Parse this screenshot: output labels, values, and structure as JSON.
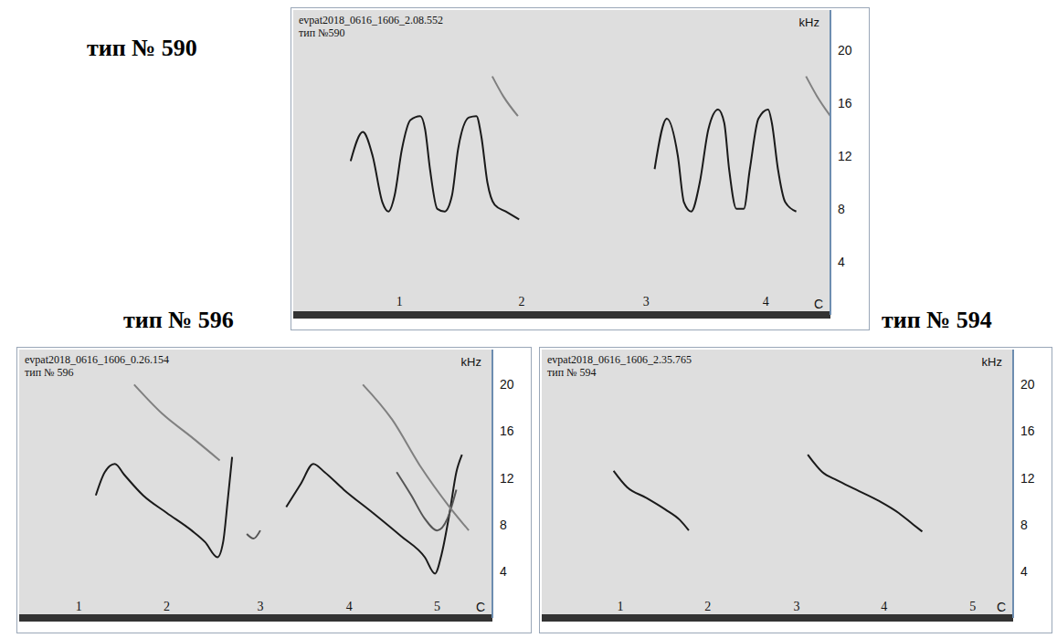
{
  "chart_data": [
    {
      "type": "line",
      "title": "тип № 590",
      "subtitle": "evpat2018_0616_1606_2.08.552",
      "y_label": "kHz",
      "x_label": "C",
      "xlim": [
        0,
        4.4
      ],
      "ylim": [
        0,
        23
      ],
      "yticks": [
        4,
        8,
        12,
        16,
        20
      ],
      "tick_labels": "y",
      "grid": false,
      "annotations": [
        {
          "text": "тип №590"
        },
        {
          "text": "1",
          "x": 0.87,
          "y": 1
        },
        {
          "text": "2",
          "x": 1.87,
          "y": 1
        },
        {
          "text": "3",
          "x": 2.89,
          "y": 1
        },
        {
          "text": "4",
          "x": 3.87,
          "y": 1
        }
      ],
      "series": [
        {
          "color": "#1a1a1a",
          "x": [
            0.47,
            0.57,
            0.65,
            0.73,
            0.78,
            0.83,
            0.89,
            0.96,
            1.04,
            1.08,
            1.12,
            1.18,
            1.24,
            1.3,
            1.35,
            1.44,
            1.5,
            1.54,
            1.59,
            1.65,
            1.74,
            1.85
          ],
          "values": [
            11.6,
            13.8,
            12,
            8.5,
            7.8,
            9,
            12.5,
            14.7,
            15,
            14,
            11,
            8,
            7.8,
            9,
            12.5,
            14.9,
            15,
            13.5,
            10,
            8.3,
            7.8,
            7.2
          ]
        },
        {
          "color": "#1a1a1a",
          "x": [
            2.96,
            3.06,
            3.15,
            3.2,
            3.26,
            3.33,
            3.4,
            3.48,
            3.53,
            3.57,
            3.63,
            3.69,
            3.74,
            3.81,
            3.89,
            3.92,
            3.97,
            4.03,
            4.12
          ],
          "values": [
            11,
            14.8,
            12,
            8.5,
            7.8,
            10,
            14,
            15.5,
            14.5,
            11,
            8,
            8,
            11,
            14.8,
            15.5,
            14.5,
            11,
            8.5,
            7.8
          ]
        },
        {
          "color": "#808080",
          "x": [
            1.63,
            1.72,
            1.84
          ],
          "values": [
            18,
            16.5,
            15
          ]
        },
        {
          "color": "#808080",
          "x": [
            4.2,
            4.29,
            4.4
          ],
          "values": [
            18,
            16.5,
            15
          ]
        }
      ]
    },
    {
      "type": "line",
      "title": "тип № 596",
      "subtitle": "evpat2018_0616_1606_0.26.154",
      "y_label": "kHz",
      "x_label": "C",
      "xlim": [
        0,
        4.2
      ],
      "ylim": [
        0,
        23
      ],
      "yticks": [
        4,
        8,
        12,
        16,
        20
      ],
      "tick_labels": "y",
      "grid": false,
      "annotations": [
        {
          "text": "тип № 596"
        },
        {
          "text": "1",
          "x": 0.53,
          "y": 1
        },
        {
          "text": "2",
          "x": 1.31,
          "y": 1
        },
        {
          "text": "3",
          "x": 2.14,
          "y": 1
        },
        {
          "text": "4",
          "x": 2.93,
          "y": 1
        },
        {
          "text": "5",
          "x": 3.71,
          "y": 1
        }
      ],
      "series": [
        {
          "color": "#1a1a1a",
          "x": [
            0.68,
            0.76,
            0.85,
            0.93,
            1.1,
            1.31,
            1.53,
            1.65,
            1.76,
            1.81,
            1.85,
            1.89
          ],
          "values": [
            10.5,
            12.5,
            13.2,
            12.3,
            10.5,
            9,
            7.5,
            6.5,
            5.2,
            6.5,
            10,
            13.8
          ]
        },
        {
          "color": "#808080",
          "x": [
            1.02,
            1.27,
            1.53,
            1.78
          ],
          "values": [
            20,
            17.5,
            15.5,
            13.5
          ]
        },
        {
          "color": "#555555",
          "x": [
            2.02,
            2.08,
            2.14
          ],
          "values": [
            7.2,
            6.8,
            7.5
          ]
        },
        {
          "color": "#1a1a1a",
          "x": [
            2.37,
            2.5,
            2.61,
            2.71,
            2.88,
            3.14,
            3.39,
            3.6,
            3.69,
            3.75,
            3.82,
            3.88,
            3.93
          ],
          "values": [
            9.5,
            11.5,
            13.2,
            12.5,
            11,
            9,
            7,
            5.2,
            3.8,
            5.5,
            9,
            12.5,
            14
          ]
        },
        {
          "color": "#555555",
          "x": [
            3.35,
            3.48,
            3.6,
            3.71,
            3.8,
            3.88
          ],
          "values": [
            12.5,
            10.5,
            8.5,
            7.5,
            8.5,
            11
          ]
        },
        {
          "color": "#808080",
          "x": [
            3.05,
            3.31,
            3.56,
            3.82,
            3.99
          ],
          "values": [
            20,
            17,
            13,
            9.5,
            7.5
          ]
        }
      ]
    },
    {
      "type": "line",
      "title": "тип № 594",
      "subtitle": "evpat2018_0616_1606_2.35.765",
      "y_label": "kHz",
      "x_label": "C",
      "xlim": [
        0,
        4.2
      ],
      "ylim": [
        0,
        23
      ],
      "yticks": [
        4,
        8,
        12,
        16,
        20
      ],
      "tick_labels": "y",
      "grid": false,
      "annotations": [
        {
          "text": "тип № 594"
        },
        {
          "text": "1",
          "x": 0.7,
          "y": 1
        },
        {
          "text": "2",
          "x": 1.48,
          "y": 1
        },
        {
          "text": "3",
          "x": 2.27,
          "y": 1
        },
        {
          "text": "4",
          "x": 3.05,
          "y": 1
        },
        {
          "text": "5",
          "x": 3.84,
          "y": 1
        }
      ],
      "series": [
        {
          "color": "#1a1a1a",
          "x": [
            0.64,
            0.76,
            0.93,
            1.1,
            1.23,
            1.31
          ],
          "values": [
            12.6,
            11.2,
            10.3,
            9.3,
            8.4,
            7.5
          ]
        },
        {
          "color": "#1a1a1a",
          "x": [
            2.37,
            2.5,
            2.63,
            2.8,
            3.01,
            3.18,
            3.31,
            3.39
          ],
          "values": [
            14,
            12.5,
            11.8,
            11,
            10,
            9,
            8,
            7.4
          ]
        }
      ]
    }
  ]
}
